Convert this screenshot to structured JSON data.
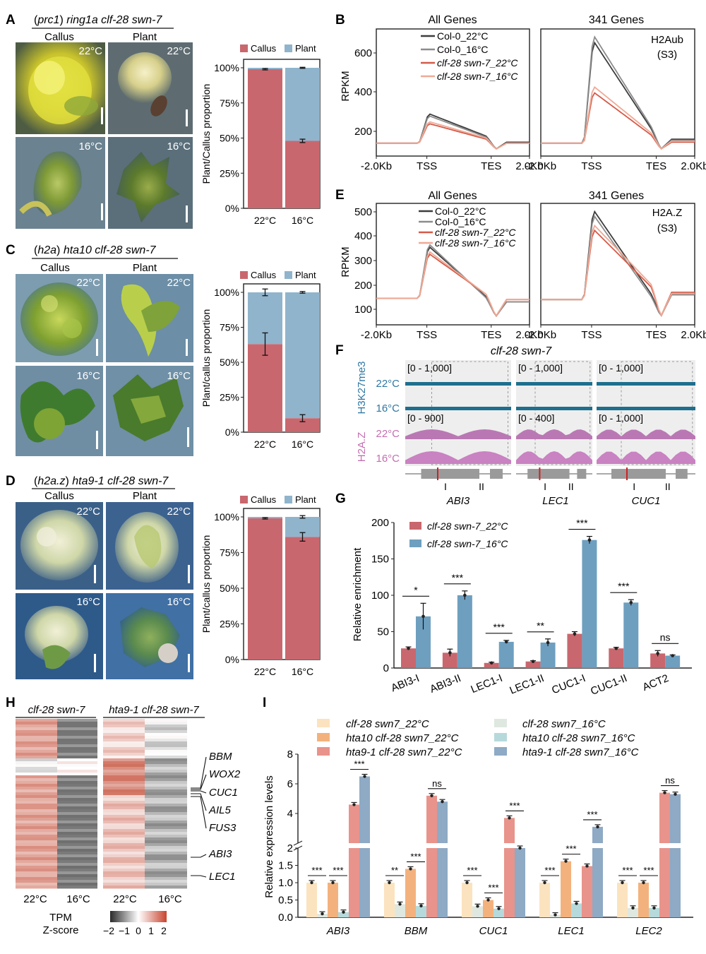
{
  "panels": {
    "A": {
      "label": "A",
      "title_parts": [
        "(",
        "prc1",
        ") ",
        "ring1a clf-28 swn-7"
      ],
      "col_callus": "Callus",
      "col_plant": "Plant",
      "temp_top": "22°C",
      "temp_bottom": "16°C",
      "chart_data": {
        "type": "bar",
        "stacked": true,
        "categories": [
          "22°C",
          "16°C"
        ],
        "series": [
          {
            "name": "Callus",
            "color": "#c9676e",
            "values": [
              99,
              48
            ],
            "err": [
              0.5,
              1.2
            ]
          },
          {
            "name": "Plant",
            "color": "#90b4cc",
            "values": [
              1,
              52
            ],
            "err": [
              0,
              1.2
            ]
          }
        ],
        "ylabel": "Plant/Callus proportion",
        "yticks": [
          "0%",
          "25%",
          "50%",
          "75%",
          "100%"
        ],
        "ylim": [
          0,
          100
        ]
      }
    },
    "B": {
      "label": "B",
      "titles": [
        "All Genes",
        "341 Genes"
      ],
      "mark_label": "H2Aub",
      "mark_stage": "(S3)",
      "ylabel": "RPKM",
      "yticks": [
        "200",
        "400",
        "600"
      ],
      "xticks": [
        "-2.0Kb",
        "TSS",
        "TES",
        "2.0Kb"
      ],
      "legend": [
        "Col-0_22°C",
        "Col-0_16°C",
        "clf-28 swn-7_22°C",
        "clf-28 swn-7_16°C"
      ],
      "colors": [
        "#3d3d3d",
        "#8c8c8c",
        "#d55a48",
        "#efa995"
      ]
    },
    "C": {
      "label": "C",
      "title_parts": [
        "(",
        "h2a",
        ") ",
        "hta10 clf-28 swn-7"
      ],
      "col_callus": "Callus",
      "col_plant": "Plant",
      "temp_top": "22°C",
      "temp_bottom": "16°C",
      "chart_data": {
        "type": "bar",
        "stacked": true,
        "categories": [
          "22°C",
          "16°C"
        ],
        "series": [
          {
            "name": "Callus",
            "color": "#c9676e",
            "values": [
              63,
              10
            ],
            "err": [
              8,
              2.5
            ]
          },
          {
            "name": "Plant",
            "color": "#90b4cc",
            "values": [
              37,
              90
            ],
            "err": [
              8,
              2
            ]
          }
        ],
        "ylabel": "Plant/callus proportion",
        "yticks": [
          "0%",
          "25%",
          "50%",
          "75%",
          "100%"
        ],
        "ylim": [
          0,
          100
        ]
      }
    },
    "D": {
      "label": "D",
      "title_parts": [
        "(",
        "h2a.z",
        ") ",
        "hta9-1 clf-28 swn-7"
      ],
      "col_callus": "Callus",
      "col_plant": "Plant",
      "temp_top": "22°C",
      "temp_bottom": "16°C",
      "chart_data": {
        "type": "bar",
        "stacked": true,
        "categories": [
          "22°C",
          "16°C"
        ],
        "series": [
          {
            "name": "Callus",
            "color": "#c9676e",
            "values": [
              99,
              86
            ],
            "err": [
              0.5,
              3
            ]
          },
          {
            "name": "Plant",
            "color": "#90b4cc",
            "values": [
              1,
              14
            ],
            "err": [
              0,
              3
            ]
          }
        ],
        "ylabel": "Plant/callus proportion",
        "yticks": [
          "0%",
          "25%",
          "50%",
          "75%",
          "100%"
        ],
        "ylim": [
          0,
          100
        ]
      }
    },
    "E": {
      "label": "E",
      "titles": [
        "All Genes",
        "341 Genes"
      ],
      "mark_label": "H2A.Z",
      "mark_stage": "(S3)",
      "ylabel": "RPKM",
      "yticks": [
        "100",
        "200",
        "300",
        "400",
        "500"
      ],
      "xticks": [
        "-2.0Kb",
        "TSS",
        "TES",
        "2.0Kb"
      ],
      "legend": [
        "Col-0_22°C",
        "Col-0_16°C",
        "clf-28 swn-7_22°C",
        "clf-28 swn-7_16°C"
      ],
      "colors": [
        "#3d3d3d",
        "#8c8c8c",
        "#d55a48",
        "#efa995"
      ]
    },
    "F": {
      "label": "F",
      "title": "clf-28 swn-7",
      "track_h3": "H3K27me3",
      "track_h2az": "H2A.Z",
      "rows": [
        "22°C",
        "16°C",
        "22°C",
        "16°C"
      ],
      "scales_h3": [
        "[0 - 1,000]",
        "[0 - 1,000]",
        "[0 - 1,000]"
      ],
      "scales_h2az": [
        "[0 - 900]",
        "[0 - 400]",
        "[0 - 1,000]"
      ],
      "genes": [
        "ABI3",
        "LEC1",
        "CUC1"
      ],
      "sites": [
        "I",
        "II"
      ]
    },
    "G": {
      "label": "G",
      "chart_data": {
        "type": "bar",
        "categories": [
          "ABI3-I",
          "ABI3-II",
          "LEC1-I",
          "LEC1-II",
          "CUC1-I",
          "CUC1-II",
          "ACT2"
        ],
        "series": [
          {
            "name": "clf-28 swn-7_22°C",
            "color": "#c9676e",
            "values": [
              27,
              21,
              7,
              9,
              47,
              27,
              20
            ],
            "err": [
              2,
              5,
              1,
              1,
              3,
              1.5,
              4
            ]
          },
          {
            "name": "clf-28 swn-7_16°C",
            "color": "#6e9fbf",
            "values": [
              71,
              100,
              36,
              35,
              176,
              90,
              17
            ],
            "err": [
              18,
              6,
              2,
              5,
              5,
              4,
              1
            ]
          }
        ],
        "significance": [
          "*",
          "***",
          "***",
          "**",
          "***",
          "***",
          "ns"
        ],
        "ylabel": "Relative enrichment",
        "yticks": [
          "0",
          "50",
          "100",
          "150",
          "200"
        ],
        "ylim": [
          0,
          200
        ]
      }
    },
    "H": {
      "label": "H",
      "group1": "clf-28 swn-7",
      "group2": "hta9-1 clf-28 swn-7",
      "xlabels": [
        "22°C",
        "16°C",
        "22°C",
        "16°C"
      ],
      "genes": [
        "BBM",
        "WOX2",
        "CUC1",
        "AIL5",
        "FUS3",
        "ABI3",
        "LEC1"
      ],
      "legend_title1": "TPM",
      "legend_title2": "Z-score",
      "scale_labels": [
        "−2",
        "−1",
        "0",
        "1",
        "2"
      ]
    },
    "I": {
      "label": "I",
      "chart_data": {
        "type": "bar",
        "categories": [
          "ABI3",
          "BBM",
          "CUC1",
          "LEC1",
          "LEC2"
        ],
        "series": [
          {
            "name": "clf-28 swn7_22°C",
            "color": "#fbe3bf",
            "values": [
              1.0,
              1.0,
              1.0,
              1.0,
              1.0
            ]
          },
          {
            "name": "clf-28 swn7_16°C",
            "color": "#dfe8e0",
            "values": [
              0.1,
              0.38,
              0.32,
              0.07,
              0.27
            ]
          },
          {
            "name": "hta10 clf-28 swn7_22°C",
            "color": "#f3b27d",
            "values": [
              1.0,
              1.4,
              0.5,
              1.62,
              1.0
            ]
          },
          {
            "name": "hta10 clf-28 swn7_16°C",
            "color": "#b6dadb",
            "values": [
              0.15,
              0.33,
              0.25,
              0.4,
              0.27
            ]
          },
          {
            "name": "hta9-1 clf-28 swn7_22°C",
            "color": "#e8938b",
            "values": [
              4.6,
              5.2,
              3.7,
              1.48,
              5.4
            ]
          },
          {
            "name": "hta9-1 clf-28 swn7_16°C",
            "color": "#8eaac4",
            "values": [
              6.5,
              4.8,
              2.0,
              3.1,
              5.3
            ]
          }
        ],
        "significance": [
          [
            "***",
            "***",
            "***"
          ],
          [
            "**",
            "***",
            "ns"
          ],
          [
            "***",
            "***",
            "***"
          ],
          [
            "***",
            "***",
            "***"
          ],
          [
            "***",
            "***",
            "ns"
          ]
        ],
        "ylabel": "Relative expression levels",
        "yticks_low": [
          "0.0",
          "0.5",
          "1.0",
          "1.5",
          "2"
        ],
        "yticks_high": [
          "4",
          "6",
          "8"
        ],
        "ylim": [
          0,
          8
        ],
        "axis_break": [
          2,
          2
        ]
      }
    }
  }
}
